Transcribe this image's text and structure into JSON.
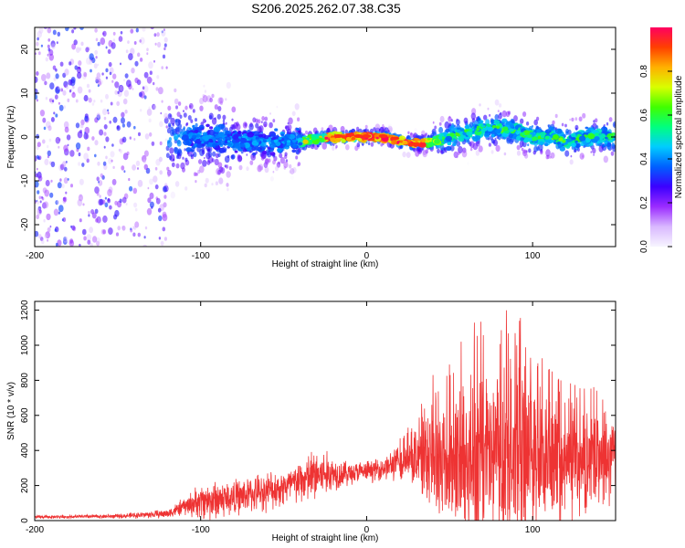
{
  "title": "S206.2025.262.07.38.C35",
  "chart_data": [
    {
      "type": "heatmap",
      "xlabel": "Height of straight line (km)",
      "ylabel": "Frequency (Hz)",
      "xlim": [
        -200,
        150
      ],
      "ylim": [
        -25,
        25
      ],
      "xticks": [
        -200,
        -100,
        0,
        100
      ],
      "yticks": [
        -20,
        -10,
        0,
        10,
        20
      ],
      "colorbar": {
        "label": "Normalized spectral amplitude",
        "range": [
          0,
          1
        ],
        "ticks": [
          "0.0",
          "0.2",
          "0.4",
          "0.6",
          "0.8"
        ],
        "colors": [
          "#f7f5ff",
          "#d9b8ff",
          "#9b2cff",
          "#3c00ff",
          "#0060ff",
          "#00ccff",
          "#00ff80",
          "#40ff00",
          "#d8ff00",
          "#ffb000",
          "#ff4000",
          "#ff0060"
        ]
      },
      "ridge": {
        "description": "frequency ridge center vs height",
        "x": [
          -200,
          -150,
          -120,
          -100,
          -80,
          -60,
          -40,
          -30,
          -20,
          -10,
          0,
          10,
          20,
          30,
          40,
          50,
          60,
          70,
          80,
          90,
          100,
          110,
          120,
          130,
          140,
          150
        ],
        "y": [
          0,
          0,
          0,
          0,
          -1,
          -1,
          -1,
          -0.5,
          0,
          0,
          0,
          0,
          -1,
          -1.5,
          -1,
          0,
          1,
          2,
          2,
          1.5,
          0,
          0,
          -1,
          0,
          0,
          0
        ]
      }
    },
    {
      "type": "line",
      "xlabel": "Height of straight line (km)",
      "ylabel": "SNR (10 * v/v)",
      "xlim": [
        -200,
        150
      ],
      "ylim": [
        0,
        1250
      ],
      "xticks": [
        -200,
        -100,
        0,
        100
      ],
      "yticks": [
        0,
        200,
        400,
        600,
        800,
        1000,
        1200
      ],
      "color": "#ee3333",
      "envelope": {
        "x": [
          -200,
          -150,
          -120,
          -110,
          -100,
          -90,
          -80,
          -70,
          -60,
          -50,
          -40,
          -30,
          -20,
          -10,
          0,
          10,
          20,
          30,
          40,
          50,
          60,
          70,
          80,
          90,
          100,
          110,
          120,
          130,
          140,
          150
        ],
        "base": [
          20,
          25,
          40,
          80,
          110,
          120,
          130,
          150,
          170,
          190,
          220,
          260,
          270,
          270,
          280,
          300,
          330,
          350,
          350,
          330,
          320,
          330,
          340,
          330,
          310,
          310,
          300,
          320,
          330,
          330
        ],
        "amp": [
          10,
          15,
          30,
          60,
          120,
          140,
          120,
          120,
          130,
          130,
          150,
          200,
          120,
          80,
          70,
          80,
          120,
          180,
          350,
          450,
          550,
          620,
          680,
          650,
          500,
          400,
          380,
          350,
          300,
          280
        ]
      }
    }
  ]
}
